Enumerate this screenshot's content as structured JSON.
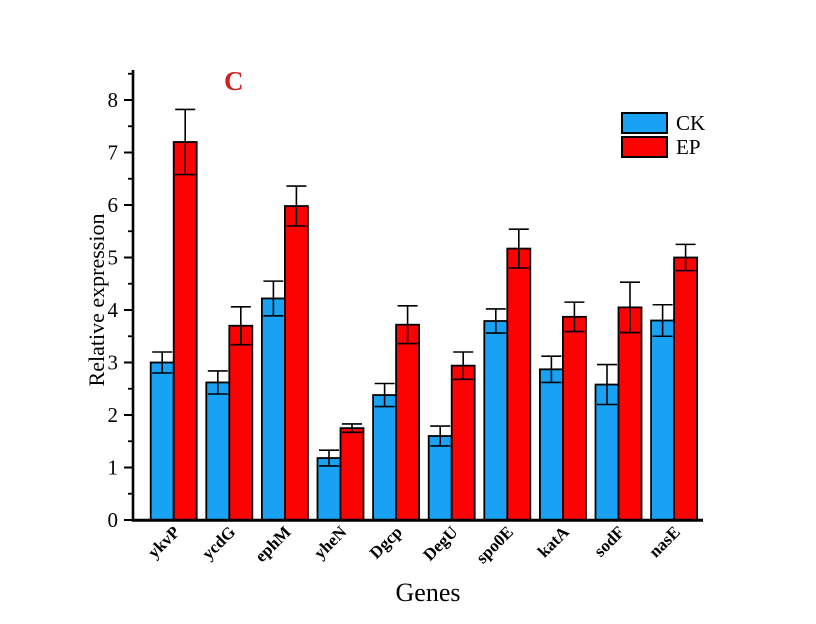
{
  "chart_data": {
    "type": "bar",
    "title": "C",
    "title_color": "#cd2121",
    "xlabel": "Genes",
    "ylabel": "Relative expression",
    "categories": [
      "ykvP",
      "ycdG",
      "ephM",
      "yheN",
      "Dgcp",
      "DegU",
      "spo0E",
      "katA",
      "sodF",
      "nasE"
    ],
    "series": [
      {
        "name": "CK",
        "color": "#19a2f3",
        "values": [
          3.0,
          2.62,
          4.22,
          1.18,
          2.38,
          1.6,
          3.79,
          2.87,
          2.58,
          3.8
        ],
        "errors": [
          0.2,
          0.22,
          0.33,
          0.15,
          0.22,
          0.19,
          0.23,
          0.25,
          0.38,
          0.3
        ]
      },
      {
        "name": "EP",
        "color": "#fa0302",
        "values": [
          7.2,
          3.7,
          5.98,
          1.75,
          3.72,
          2.94,
          5.17,
          3.87,
          4.05,
          5.0
        ],
        "errors": [
          0.62,
          0.36,
          0.38,
          0.08,
          0.36,
          0.26,
          0.37,
          0.28,
          0.48,
          0.25
        ]
      }
    ],
    "ylim": [
      0,
      8.57
    ],
    "yticks": [
      0,
      1,
      2,
      3,
      4,
      5,
      6,
      7,
      8
    ],
    "minor_tick_step": 0.5,
    "legend_position": "upper right",
    "grid": false,
    "error_bars": true,
    "axis_color": "#000000"
  }
}
